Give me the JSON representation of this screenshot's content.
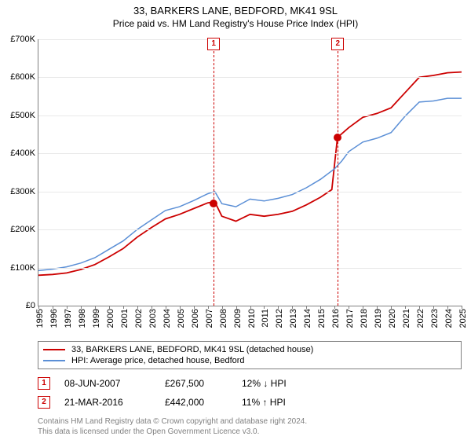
{
  "title": "33, BARKERS LANE, BEDFORD, MK41 9SL",
  "subtitle": "Price paid vs. HM Land Registry's House Price Index (HPI)",
  "chart": {
    "type": "line",
    "background_color": "#ffffff",
    "grid_color": "#e8e8e8",
    "axis_color": "#808080",
    "y": {
      "min": 0,
      "max": 700000,
      "step": 100000,
      "labels": [
        "£0",
        "£100K",
        "£200K",
        "£300K",
        "£400K",
        "£500K",
        "£600K",
        "£700K"
      ]
    },
    "x": {
      "min": 1995,
      "max": 2025,
      "labels": [
        "1995",
        "1996",
        "1997",
        "1998",
        "1999",
        "2000",
        "2001",
        "2002",
        "2003",
        "2004",
        "2005",
        "2006",
        "2007",
        "2008",
        "2009",
        "2010",
        "2011",
        "2012",
        "2013",
        "2014",
        "2015",
        "2016",
        "2017",
        "2018",
        "2019",
        "2020",
        "2021",
        "2022",
        "2023",
        "2024",
        "2025"
      ]
    },
    "series": [
      {
        "id": "property",
        "label": "33, BARKERS LANE, BEDFORD, MK41 9SL (detached house)",
        "color": "#cc0000",
        "line_width": 1.8,
        "points": [
          [
            1995,
            80000
          ],
          [
            1996,
            82000
          ],
          [
            1997,
            86000
          ],
          [
            1998,
            95000
          ],
          [
            1999,
            108000
          ],
          [
            2000,
            128000
          ],
          [
            2001,
            150000
          ],
          [
            2002,
            180000
          ],
          [
            2003,
            205000
          ],
          [
            2004,
            228000
          ],
          [
            2005,
            240000
          ],
          [
            2006,
            255000
          ],
          [
            2007,
            270000
          ],
          [
            2007.5,
            273000
          ],
          [
            2008,
            235000
          ],
          [
            2009,
            222000
          ],
          [
            2010,
            240000
          ],
          [
            2011,
            235000
          ],
          [
            2012,
            240000
          ],
          [
            2013,
            248000
          ],
          [
            2014,
            265000
          ],
          [
            2015,
            285000
          ],
          [
            2015.8,
            305000
          ],
          [
            2016.2,
            442000
          ],
          [
            2017,
            468000
          ],
          [
            2018,
            495000
          ],
          [
            2019,
            505000
          ],
          [
            2020,
            520000
          ],
          [
            2021,
            560000
          ],
          [
            2022,
            600000
          ],
          [
            2023,
            605000
          ],
          [
            2024,
            612000
          ],
          [
            2025,
            614000
          ]
        ]
      },
      {
        "id": "hpi",
        "label": "HPI: Average price, detached house, Bedford",
        "color": "#5b8fd6",
        "line_width": 1.5,
        "points": [
          [
            1995,
            92000
          ],
          [
            1996,
            96000
          ],
          [
            1997,
            102000
          ],
          [
            1998,
            112000
          ],
          [
            1999,
            126000
          ],
          [
            2000,
            148000
          ],
          [
            2001,
            170000
          ],
          [
            2002,
            200000
          ],
          [
            2003,
            225000
          ],
          [
            2004,
            250000
          ],
          [
            2005,
            260000
          ],
          [
            2006,
            276000
          ],
          [
            2007,
            294000
          ],
          [
            2007.5,
            300000
          ],
          [
            2008,
            268000
          ],
          [
            2009,
            260000
          ],
          [
            2010,
            280000
          ],
          [
            2011,
            275000
          ],
          [
            2012,
            282000
          ],
          [
            2013,
            292000
          ],
          [
            2014,
            310000
          ],
          [
            2015,
            332000
          ],
          [
            2016,
            360000
          ],
          [
            2016.5,
            380000
          ],
          [
            2017,
            405000
          ],
          [
            2018,
            430000
          ],
          [
            2019,
            440000
          ],
          [
            2020,
            455000
          ],
          [
            2021,
            498000
          ],
          [
            2022,
            535000
          ],
          [
            2023,
            538000
          ],
          [
            2024,
            545000
          ],
          [
            2025,
            545000
          ]
        ]
      }
    ],
    "event_markers": [
      {
        "n": "1",
        "x": 2007.42,
        "y": 267500
      },
      {
        "n": "2",
        "x": 2016.22,
        "y": 442000
      }
    ]
  },
  "legend": {
    "items": [
      {
        "color": "#cc0000",
        "label": "33, BARKERS LANE, BEDFORD, MK41 9SL (detached house)"
      },
      {
        "color": "#5b8fd6",
        "label": "HPI: Average price, detached house, Bedford"
      }
    ]
  },
  "sales": [
    {
      "n": "1",
      "date": "08-JUN-2007",
      "price": "£267,500",
      "delta": "12% ↓ HPI"
    },
    {
      "n": "2",
      "date": "21-MAR-2016",
      "price": "£442,000",
      "delta": "11% ↑ HPI"
    }
  ],
  "footer": {
    "line1": "Contains HM Land Registry data © Crown copyright and database right 2024.",
    "line2": "This data is licensed under the Open Government Licence v3.0."
  },
  "fonts": {
    "title": 13,
    "subtitle": 12,
    "axis": 11,
    "legend": 11,
    "table": 12,
    "footer": 10
  }
}
